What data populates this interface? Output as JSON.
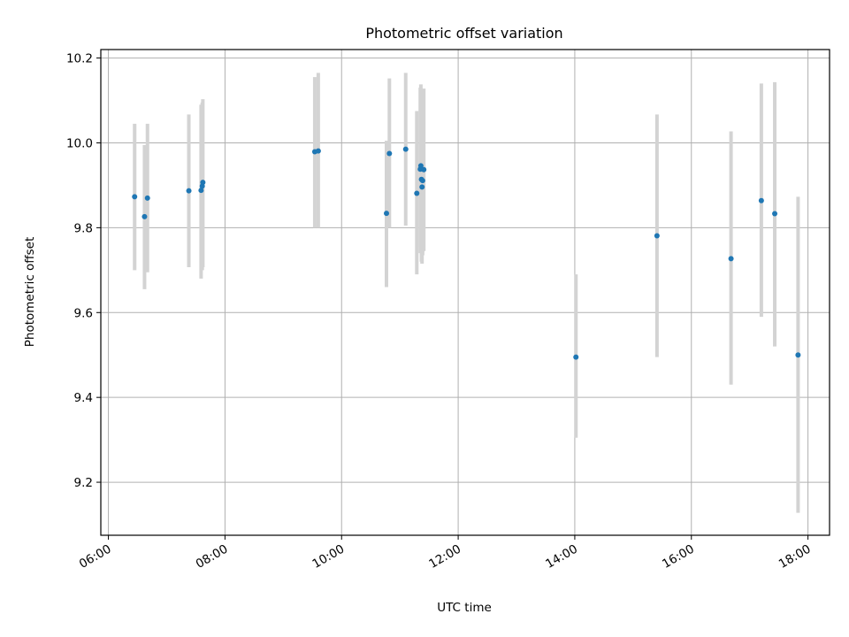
{
  "chart_data": {
    "type": "scatter",
    "title": "Photometric offset variation",
    "xlabel": "UTC time",
    "ylabel": "Photometric offset",
    "xlim": [
      5.87,
      18.37
    ],
    "ylim": [
      9.075,
      10.22
    ],
    "x_ticks": [
      {
        "value": 6,
        "label": "06:00"
      },
      {
        "value": 8,
        "label": "08:00"
      },
      {
        "value": 10,
        "label": "10:00"
      },
      {
        "value": 12,
        "label": "12:00"
      },
      {
        "value": 14,
        "label": "14:00"
      },
      {
        "value": 16,
        "label": "16:00"
      },
      {
        "value": 18,
        "label": "18:00"
      }
    ],
    "y_ticks": [
      {
        "value": 9.2,
        "label": "9.2"
      },
      {
        "value": 9.4,
        "label": "9.4"
      },
      {
        "value": 9.6,
        "label": "9.6"
      },
      {
        "value": 9.8,
        "label": "9.8"
      },
      {
        "value": 10.0,
        "label": "10.0"
      },
      {
        "value": 10.2,
        "label": "10.2"
      }
    ],
    "grid": true,
    "point_color": "#1f77b4",
    "errorbar_color": "#d3d3d3",
    "points": [
      {
        "x": 6.45,
        "y": 9.873,
        "lo": 9.7,
        "hi": 10.045
      },
      {
        "x": 6.62,
        "y": 9.826,
        "lo": 9.655,
        "hi": 9.995
      },
      {
        "x": 6.67,
        "y": 9.87,
        "lo": 9.695,
        "hi": 10.045
      },
      {
        "x": 7.38,
        "y": 9.887,
        "lo": 9.707,
        "hi": 10.067
      },
      {
        "x": 7.59,
        "y": 9.888,
        "lo": 9.68,
        "hi": 10.09
      },
      {
        "x": 7.61,
        "y": 9.898,
        "lo": 9.7,
        "hi": 10.095
      },
      {
        "x": 7.62,
        "y": 9.907,
        "lo": 9.707,
        "hi": 10.103
      },
      {
        "x": 9.54,
        "y": 9.979,
        "lo": 9.8,
        "hi": 10.155
      },
      {
        "x": 9.6,
        "y": 9.981,
        "lo": 9.8,
        "hi": 10.165
      },
      {
        "x": 10.77,
        "y": 9.834,
        "lo": 9.66,
        "hi": 10.005
      },
      {
        "x": 10.82,
        "y": 9.975,
        "lo": 9.8,
        "hi": 10.152
      },
      {
        "x": 11.1,
        "y": 9.985,
        "lo": 9.805,
        "hi": 10.165
      },
      {
        "x": 11.29,
        "y": 9.881,
        "lo": 9.69,
        "hi": 10.075
      },
      {
        "x": 11.35,
        "y": 9.938,
        "lo": 9.74,
        "hi": 10.13
      },
      {
        "x": 11.36,
        "y": 9.946,
        "lo": 9.755,
        "hi": 10.138
      },
      {
        "x": 11.37,
        "y": 9.914,
        "lo": 9.72,
        "hi": 10.11
      },
      {
        "x": 11.38,
        "y": 9.896,
        "lo": 9.715,
        "hi": 10.08
      },
      {
        "x": 11.39,
        "y": 9.911,
        "lo": 9.735,
        "hi": 10.09
      },
      {
        "x": 11.41,
        "y": 9.937,
        "lo": 9.745,
        "hi": 10.128
      },
      {
        "x": 14.02,
        "y": 9.495,
        "lo": 9.305,
        "hi": 9.69
      },
      {
        "x": 15.41,
        "y": 9.781,
        "lo": 9.495,
        "hi": 10.067
      },
      {
        "x": 16.68,
        "y": 9.727,
        "lo": 9.43,
        "hi": 10.027
      },
      {
        "x": 17.2,
        "y": 9.864,
        "lo": 9.59,
        "hi": 10.14
      },
      {
        "x": 17.43,
        "y": 9.833,
        "lo": 9.52,
        "hi": 10.143
      },
      {
        "x": 17.83,
        "y": 9.5,
        "lo": 9.128,
        "hi": 9.873
      }
    ]
  }
}
